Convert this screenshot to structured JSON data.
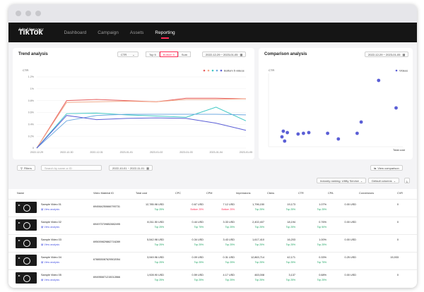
{
  "app": {
    "logo": "TikTok",
    "logo_sub": "Ads Manager"
  },
  "nav": [
    "Dashboard",
    "Campaign",
    "Assets",
    "Reporting"
  ],
  "trend": {
    "title": "Trend analysis",
    "metric": "CTR",
    "segments": [
      "Top 5",
      "Bottom 5",
      "Sum"
    ],
    "date_range": "2022-12-29 ~ 2023-01-05",
    "legend_label": "Bottom 5 videos",
    "y_label": "CTR",
    "y_ticks": [
      "1.2%",
      "1%",
      "0.8%",
      "0.6%",
      "0.4%",
      "0.2%",
      "0"
    ],
    "x_ticks": [
      "2022-12-29",
      "2022-12-30",
      "2022-12-31",
      "2023-01-01",
      "2023-01-02",
      "2023-01-03",
      "2023-01-04",
      "2023-01-05"
    ]
  },
  "comparison": {
    "title": "Comparison analysis",
    "date_range": "2022-12-29 ~ 2023-01-05",
    "y_label": "CTR",
    "legend_label": "Videos",
    "x_label": "Total cost"
  },
  "filters": {
    "filters_label": "Filters",
    "search_placeholder": "Search by name or ID",
    "date_range": "2022-10-01 ~ 2022-11-01",
    "view_comparison": "View comparison",
    "industry": "Industry ranking: Utility Service",
    "columns": "Default columns"
  },
  "table": {
    "headers": [
      "Name",
      "Video Material ID",
      "Total cost",
      "CPC",
      "CPM",
      "Impressions",
      "Clicks",
      "CTR",
      "CPA",
      "Conversions",
      "CVR"
    ],
    "view_label": "View analysis",
    "rows": [
      {
        "name": "Sample Video 01",
        "id": "694564250666790731",
        "cost": "12,785.98 USD",
        "cost_rank": "Top 25%",
        "cpc": "0.67 USD",
        "cpc_rank": "Bottom 25%",
        "cpm": "7.12 USD",
        "cpm_rank": "Bottom 25%",
        "imp": "1,796,150",
        "imp_rank": "Top 25%",
        "clicks": "19,173",
        "clicks_rank": "Top 25%",
        "ctr": "1.07%",
        "ctr_rank": "Top 25%",
        "cpa": "0.00 USD",
        "conv": "0",
        "cvr": "0.00%"
      },
      {
        "name": "Sample Video 02",
        "id": "694973709852882495",
        "cost": "8,011.50 USD",
        "cost_rank": "Top 25%",
        "cpc": "0.44 USD",
        "cpc_rank": "Top 75%",
        "cpm": "3.33 USD",
        "cpm_rank": "Top 25%",
        "imp": "2,402,407",
        "imp_rank": "Top 25%",
        "clicks": "18,194",
        "clicks_rank": "Top 25%",
        "ctr": "0.76%",
        "ctr_rank": "Top 50%",
        "cpa": "0.00 USD",
        "conv": "0",
        "cvr": "0.00%"
      },
      {
        "name": "Sample Video 03",
        "id": "695009829862716289",
        "cost": "5,542.98 USD",
        "cost_rank": "Top 25%",
        "cpc": "0.34 USD",
        "cpc_rank": "Top 25%",
        "cpm": "3.43 USD",
        "cpm_rank": "Top 25%",
        "imp": "1,617,410",
        "imp_rank": "Top 25%",
        "clicks": "16,203",
        "clicks_rank": "Top 25%",
        "ctr": "1.00%",
        "ctr_rank": "Top 25%",
        "cpa": "0.00 USD",
        "conv": "0",
        "cvr": "0.00%"
      },
      {
        "name": "Sample Video 04",
        "id": "678853087629502054",
        "cost": "3,949.96 USD",
        "cost_rank": "Top 25%",
        "cpc": "0.09 USD",
        "cpc_rank": "Top 25%",
        "cpm": "0.31 USD",
        "cpm_rank": "Top 25%",
        "imp": "12,863,714",
        "imp_rank": "Top 25%",
        "clicks": "42,171",
        "clicks_rank": "Top 25%",
        "ctr": "0.33%",
        "ctr_rank": "Top 75%",
        "cpa": "0.25 USD",
        "conv": "15,933",
        "cvr": "37.78%"
      },
      {
        "name": "Sample Video 05",
        "id": "694955871215012866",
        "cost": "1,928.90 USD",
        "cost_rank": "Top 25%",
        "cpc": "0.59 USD",
        "cpc_rank": "Top 25%",
        "cpm": "4.17 USD",
        "cpm_rank": "Top 25%",
        "imp": "463,008",
        "imp_rank": "Top 25%",
        "clicks": "3,137",
        "clicks_rank": "Top 25%",
        "ctr": "0.68%",
        "ctr_rank": "Top 25%",
        "cpa": "0.00 USD",
        "conv": "0",
        "cvr": "0.00%"
      }
    ]
  },
  "chart_data": [
    {
      "type": "line",
      "title": "Trend analysis",
      "ylabel": "CTR",
      "ylim": [
        0,
        1.2
      ],
      "x": [
        "2022-12-29",
        "2022-12-30",
        "2022-12-31",
        "2023-01-01",
        "2023-01-02",
        "2023-01-03",
        "2023-01-04",
        "2023-01-05"
      ],
      "series": [
        {
          "color": "#e85f5f",
          "values": [
            0,
            0.8,
            0.82,
            0.8,
            0.78,
            0.84,
            0.84,
            0.83
          ]
        },
        {
          "color": "#f2a989",
          "values": [
            0,
            0.77,
            0.78,
            0.79,
            0.78,
            0.82,
            0.82,
            0.83
          ]
        },
        {
          "color": "#3fc8c4",
          "values": [
            0,
            0.58,
            0.59,
            0.56,
            0.54,
            0.52,
            0.69,
            0.46
          ]
        },
        {
          "color": "#6ea9e0",
          "values": [
            0,
            0.46,
            0.55,
            0.57,
            0.57,
            0.57,
            0.57,
            0.56
          ]
        },
        {
          "color": "#5b5fd6",
          "values": [
            0,
            0.55,
            0.48,
            0.5,
            0.51,
            0.5,
            0.42,
            0.3
          ]
        }
      ]
    },
    {
      "type": "scatter",
      "title": "Comparison analysis",
      "ylabel": "CTR",
      "xlabel": "Total cost",
      "points": [
        {
          "x": 0.1,
          "y": 0.14
        },
        {
          "x": 0.11,
          "y": 0.22
        },
        {
          "x": 0.12,
          "y": 0.08
        },
        {
          "x": 0.14,
          "y": 0.2
        },
        {
          "x": 0.22,
          "y": 0.18
        },
        {
          "x": 0.26,
          "y": 0.19
        },
        {
          "x": 0.3,
          "y": 0.2
        },
        {
          "x": 0.44,
          "y": 0.19
        },
        {
          "x": 0.52,
          "y": 0.11
        },
        {
          "x": 0.66,
          "y": 0.19
        },
        {
          "x": 0.69,
          "y": 0.35
        },
        {
          "x": 0.82,
          "y": 0.94
        },
        {
          "x": 0.95,
          "y": 0.55
        }
      ]
    }
  ]
}
